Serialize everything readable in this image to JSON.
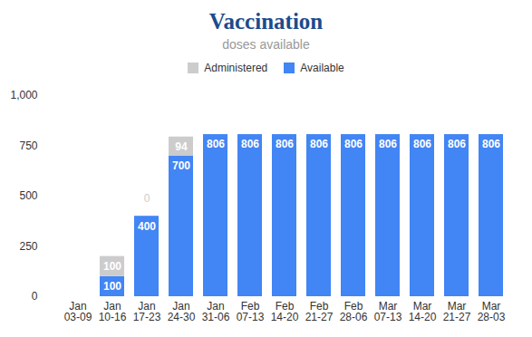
{
  "chart_data": {
    "type": "bar",
    "title": "Vaccination",
    "subtitle": "doses available",
    "categories": [
      "Jan 03-09",
      "Jan 10-16",
      "Jan 17-23",
      "Jan 24-30",
      "Jan 31-06",
      "Feb 07-13",
      "Feb 14-20",
      "Feb 21-27",
      "Feb 28-06",
      "Mar 07-13",
      "Mar 14-20",
      "Mar 21-27",
      "Mar 28-03"
    ],
    "series": [
      {
        "name": "Administered",
        "color": "#cccccc",
        "values": [
          null,
          100,
          0,
          94,
          null,
          null,
          null,
          null,
          null,
          null,
          null,
          null,
          null
        ]
      },
      {
        "name": "Available",
        "color": "#4285f4",
        "values": [
          null,
          100,
          400,
          700,
          806,
          806,
          806,
          806,
          806,
          806,
          806,
          806,
          806
        ]
      }
    ],
    "ylim": [
      0,
      1000
    ],
    "yticks": [
      0,
      250,
      500,
      750,
      1000
    ],
    "grid": false,
    "stacked": true,
    "data_labels": true,
    "legend": "top"
  }
}
